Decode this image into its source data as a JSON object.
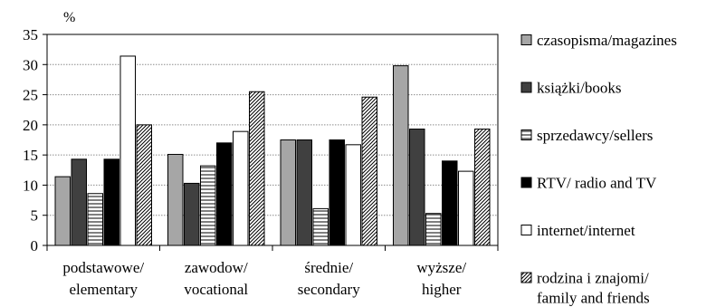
{
  "chart_data": {
    "type": "bar",
    "y_unit": "%",
    "ylim": [
      0,
      35
    ],
    "y_ticks": [
      "0",
      "5",
      "10",
      "15",
      "20",
      "25",
      "30",
      "35"
    ],
    "grid": true,
    "legend_position": "right",
    "categories": [
      [
        "podstawowe/",
        "elementary"
      ],
      [
        "zawodow/",
        "vocational"
      ],
      [
        "średnie/",
        "secondary"
      ],
      [
        "wyższe/",
        "higher"
      ]
    ],
    "series": [
      {
        "name": [
          "czasopisma/magazines"
        ],
        "pattern": "gray",
        "values": [
          11.4,
          15.1,
          17.5,
          29.8
        ]
      },
      {
        "name": [
          "książki/books"
        ],
        "pattern": "darkgray",
        "values": [
          14.3,
          10.3,
          17.5,
          19.3
        ]
      },
      {
        "name": [
          "sprzedawcy/sellers"
        ],
        "pattern": "hlines",
        "values": [
          8.6,
          13.2,
          6.1,
          5.3
        ]
      },
      {
        "name": [
          "RTV/ radio and TV"
        ],
        "pattern": "black",
        "values": [
          14.3,
          17.0,
          17.5,
          14.0
        ]
      },
      {
        "name": [
          "internet/internet"
        ],
        "pattern": "white",
        "values": [
          31.4,
          18.9,
          16.7,
          12.3
        ]
      },
      {
        "name": [
          "rodzina i znajomi/",
          "family and friends"
        ],
        "pattern": "diagonal",
        "values": [
          20.0,
          25.5,
          24.6,
          19.3
        ]
      }
    ],
    "colors": {
      "gray": "#a6a6a6",
      "darkgray": "#404040",
      "black": "#000000",
      "white": "#ffffff"
    }
  }
}
